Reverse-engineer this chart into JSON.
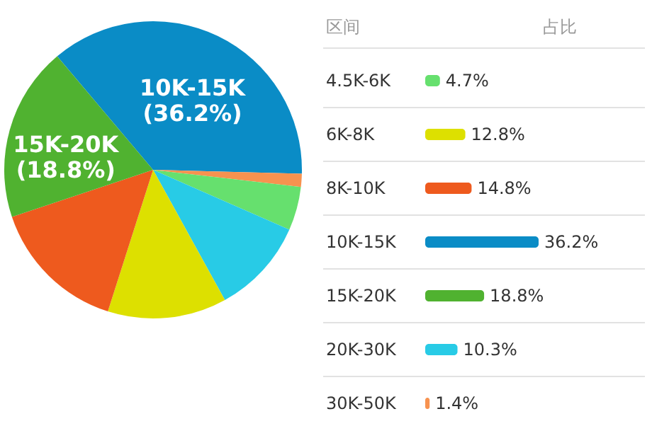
{
  "chart_data": [
    {
      "type": "pie",
      "categories": [
        null,
        null,
        null,
        null,
        null,
        null,
        null
      ],
      "values": [
        36.2,
        1.4,
        4.7,
        10.3,
        12.8,
        14.8,
        18.8
      ],
      "colors": [
        "#0a8cc6",
        "#f7924f",
        "#66e06e",
        "#28cbe6",
        "#dde000",
        "#ee5a1e",
        "#50b230"
      ],
      "value_labels": [
        "10K-15K (36.2%)",
        null,
        null,
        null,
        null,
        null,
        "15K-20K (18.8%)"
      ]
    },
    {
      "type": "bar",
      "orientation": "horizontal",
      "ylabel": "区间",
      "categories": [
        "4.5K-6K",
        "6K-8K",
        "8K-10K",
        "10K-15K",
        "15K-20K",
        "20K-30K",
        "30K-50K"
      ],
      "values": [
        4.7,
        12.8,
        14.8,
        36.2,
        18.8,
        10.3,
        1.4
      ],
      "colors": [
        "#66e06e",
        "#dde000",
        "#ee5a1e",
        "#0a8cc6",
        "#50b230",
        "#28cbe6",
        "#f7924f"
      ],
      "value_labels": [
        "4.7%",
        "12.8%",
        "14.8%",
        "36.2%",
        "18.8%",
        "10.3%",
        "1.4%"
      ],
      "annotations": [
        "占比"
      ]
    }
  ]
}
